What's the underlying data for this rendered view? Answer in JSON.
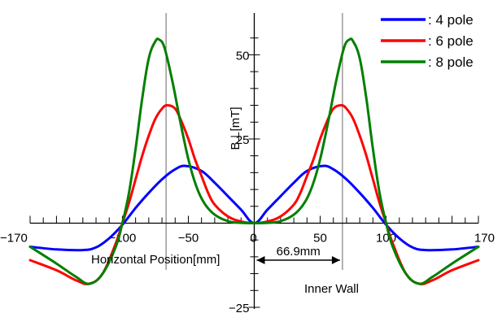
{
  "chart_data": {
    "type": "line",
    "title": "",
    "xlabel": "Horizontal Position[mm]",
    "ylabel": "B⊥[mT]",
    "xlim": [
      -170,
      170
    ],
    "ylim": [
      -25,
      60
    ],
    "x_ticks": [
      -170,
      -100,
      -50,
      0,
      50,
      100,
      170
    ],
    "x_tick_labels": [
      "−170",
      "−100",
      "−50",
      "0",
      "50",
      "100",
      "170"
    ],
    "y_ticks": [
      -25,
      25,
      50
    ],
    "y_tick_labels": [
      "−25",
      "25",
      "50"
    ],
    "grid": false,
    "legend_position": "top-right",
    "series": [
      {
        "name": ": 4 pole",
        "color": "#0000ff",
        "x": [
          -170,
          -150,
          -130,
          -120,
          -110,
          -100,
          -90,
          -80,
          -70,
          -60,
          -52,
          -40,
          -30,
          -20,
          -10,
          0,
          10,
          20,
          30,
          40,
          52,
          60,
          70,
          80,
          90,
          100,
          110,
          120,
          130,
          150,
          170
        ],
        "y": [
          -7,
          -7.8,
          -8,
          -7.2,
          -4.5,
          -0.5,
          4.5,
          9,
          13,
          16,
          17,
          15.5,
          12,
          8,
          4,
          0,
          4,
          8,
          12,
          15.5,
          17,
          16,
          13,
          9,
          4.5,
          -0.5,
          -4.5,
          -7.2,
          -8,
          -7.8,
          -7
        ]
      },
      {
        "name": ": 6 pole",
        "color": "#ff0000",
        "x": [
          -170,
          -150,
          -135,
          -125,
          -115,
          -105,
          -100,
          -95,
          -90,
          -85,
          -80,
          -75,
          -70,
          -66,
          -60,
          -55,
          -50,
          -45,
          -40,
          -35,
          -30,
          -20,
          -10,
          0,
          10,
          20,
          30,
          35,
          40,
          45,
          50,
          55,
          60,
          66,
          70,
          75,
          80,
          85,
          90,
          95,
          100,
          105,
          115,
          125,
          135,
          150,
          170
        ],
        "y": [
          -11,
          -14,
          -17,
          -18,
          -15,
          -6,
          0,
          6,
          13,
          20,
          26,
          31,
          34,
          35,
          34,
          30,
          25,
          19,
          14,
          9,
          5.5,
          2,
          0.5,
          0,
          0.5,
          2,
          5.5,
          9,
          14,
          19,
          25,
          30,
          34,
          35,
          34,
          31,
          26,
          20,
          13,
          6,
          0,
          -6,
          -15,
          -18,
          -17,
          -14,
          -11
        ]
      },
      {
        "name": ": 8 pole",
        "color": "#007f00",
        "x": [
          -170,
          -150,
          -135,
          -125,
          -115,
          -105,
          -100,
          -95,
          -90,
          -85,
          -80,
          -75,
          -72,
          -68,
          -62,
          -56,
          -50,
          -44,
          -38,
          -30,
          -20,
          -10,
          0,
          10,
          20,
          30,
          38,
          44,
          50,
          56,
          62,
          68,
          72,
          75,
          80,
          85,
          90,
          95,
          100,
          105,
          115,
          125,
          135,
          150,
          170
        ],
        "y": [
          -7,
          -12,
          -16,
          -18,
          -15,
          -7,
          0,
          9,
          22,
          37,
          49,
          54,
          54.5,
          52,
          42,
          30,
          19,
          11,
          6,
          2.5,
          0.6,
          0.1,
          0,
          0.1,
          0.6,
          2.5,
          6,
          11,
          19,
          30,
          42,
          52,
          54.5,
          54,
          49,
          37,
          22,
          9,
          0,
          -7,
          -15,
          -18,
          -16,
          -12,
          -7
        ]
      }
    ],
    "reference_lines": [
      {
        "x": -66.9,
        "label": ""
      },
      {
        "x": 66.9,
        "label": "Inner Wall"
      }
    ],
    "annotations": [
      {
        "text": "66.9mm",
        "from_x": 0,
        "to_x": 66.9
      }
    ]
  }
}
